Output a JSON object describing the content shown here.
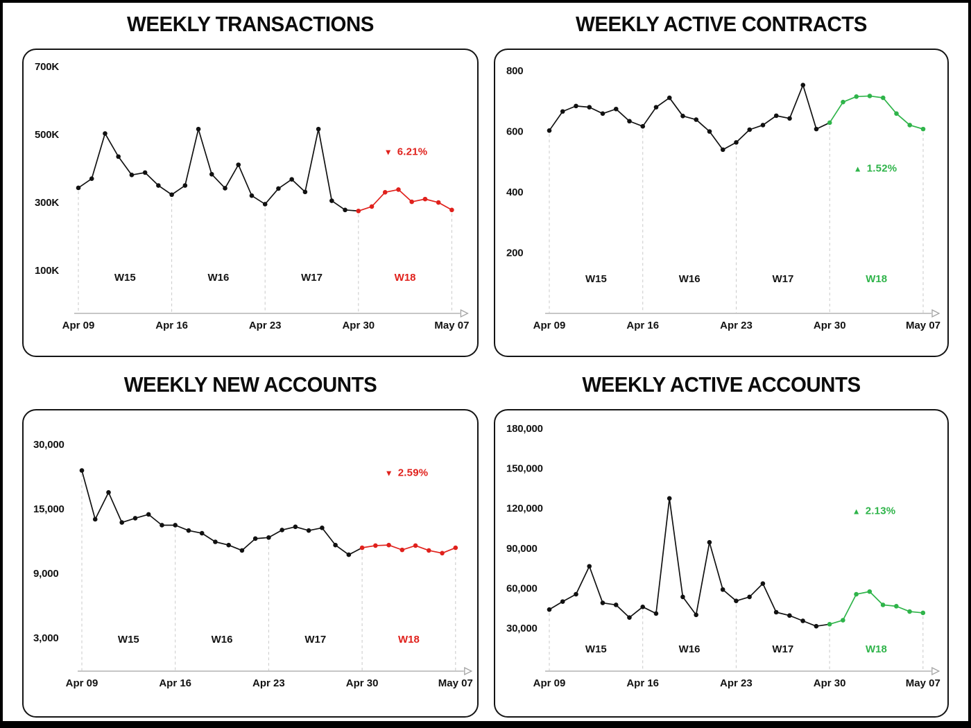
{
  "page": {
    "background": "#ffffff",
    "frame_color": "#000000"
  },
  "colors": {
    "line": "#111111",
    "down": "#e0211c",
    "up": "#2fb44a",
    "grid": "#c9c9c9",
    "axis": "#a3a3a3",
    "label": "#121212"
  },
  "chart_data": [
    {
      "type": "line",
      "title": "WEEKLY TRANSACTIONS",
      "x_labels": [
        "Apr 09",
        "Apr 16",
        "Apr 23",
        "Apr 30",
        "May 07"
      ],
      "week_labels": [
        "W15",
        "W16",
        "W17",
        "W18"
      ],
      "y_ticks": [
        {
          "label": "700K",
          "value": 700000
        },
        {
          "label": "500K",
          "value": 500000
        },
        {
          "label": "300K",
          "value": 300000
        },
        {
          "label": "100K",
          "value": 100000
        }
      ],
      "values": [
        345000,
        372000,
        505000,
        437000,
        383000,
        390000,
        352000,
        325000,
        352000,
        518000,
        385000,
        344000,
        413000,
        322000,
        297000,
        343000,
        370000,
        333000,
        518000,
        307000,
        280000,
        277000,
        290000,
        332000,
        340000,
        304000,
        312000,
        302000,
        280000
      ],
      "highlight": {
        "start_index": 21,
        "week": "W18",
        "trend": "down",
        "arrow": "▼",
        "change": "6.21%"
      },
      "line_color": "#111111",
      "highlight_color": "#e0211c"
    },
    {
      "type": "line",
      "title": "WEEKLY ACTIVE CONTRACTS",
      "x_labels": [
        "Apr 09",
        "Apr 16",
        "Apr 23",
        "Apr 30",
        "May 07"
      ],
      "week_labels": [
        "W15",
        "W16",
        "W17",
        "W18"
      ],
      "y_ticks": [
        {
          "label": "800",
          "value": 800
        },
        {
          "label": "600",
          "value": 600
        },
        {
          "label": "400",
          "value": 400
        },
        {
          "label": "200",
          "value": 200
        }
      ],
      "values": [
        605,
        668,
        686,
        682,
        661,
        676,
        636,
        619,
        682,
        713,
        653,
        641,
        602,
        542,
        566,
        608,
        623,
        654,
        645,
        755,
        610,
        631,
        699,
        717,
        719,
        713,
        661,
        623,
        610
      ],
      "highlight": {
        "start_index": 21,
        "week": "W18",
        "trend": "up",
        "arrow": "▲",
        "change": "1.52%"
      },
      "line_color": "#111111",
      "highlight_color": "#2fb44a"
    },
    {
      "type": "line",
      "title": "WEEKLY NEW ACCOUNTS",
      "x_labels": [
        "Apr 09",
        "Apr 16",
        "Apr 23",
        "Apr 30",
        "May 07"
      ],
      "week_labels": [
        "W15",
        "W16",
        "W17",
        "W18"
      ],
      "y_ticks": [
        {
          "label": "30,000",
          "value": 30000
        },
        {
          "label": "15,000",
          "value": 15000
        },
        {
          "label": "9,000",
          "value": 9000
        },
        {
          "label": "3,000",
          "value": 3000
        }
      ],
      "values": [
        24100,
        14100,
        19000,
        13800,
        14200,
        14550,
        13550,
        13550,
        13050,
        12800,
        12000,
        11700,
        11200,
        12300,
        12400,
        13100,
        13400,
        13050,
        13300,
        11700,
        10800,
        11450,
        11650,
        11700,
        11250,
        11650,
        11200,
        10950,
        11450
      ],
      "highlight": {
        "start_index": 21,
        "week": "W18",
        "trend": "down",
        "arrow": "▼",
        "change": "2.59%"
      },
      "line_color": "#111111",
      "highlight_color": "#e0211c"
    },
    {
      "type": "line",
      "title": "WEEKLY ACTIVE ACCOUNTS",
      "x_labels": [
        "Apr 09",
        "Apr 16",
        "Apr 23",
        "Apr 30",
        "May 07"
      ],
      "week_labels": [
        "W15",
        "W16",
        "W17",
        "W18"
      ],
      "y_ticks": [
        {
          "label": "180,000",
          "value": 180000
        },
        {
          "label": "150,000",
          "value": 150000
        },
        {
          "label": "120,000",
          "value": 120000
        },
        {
          "label": "90,000",
          "value": 90000
        },
        {
          "label": "60,000",
          "value": 60000
        },
        {
          "label": "30,000",
          "value": 30000
        }
      ],
      "values": [
        44500,
        50500,
        56000,
        77000,
        49500,
        48000,
        38500,
        46500,
        41500,
        128000,
        54000,
        40500,
        95000,
        59500,
        51000,
        54000,
        64000,
        42500,
        40000,
        36000,
        32000,
        33500,
        36500,
        56000,
        58000,
        48000,
        47000,
        43000,
        42000
      ],
      "highlight": {
        "start_index": 21,
        "week": "W18",
        "trend": "up",
        "arrow": "▲",
        "change": "2.13%"
      },
      "line_color": "#111111",
      "highlight_color": "#2fb44a"
    }
  ]
}
